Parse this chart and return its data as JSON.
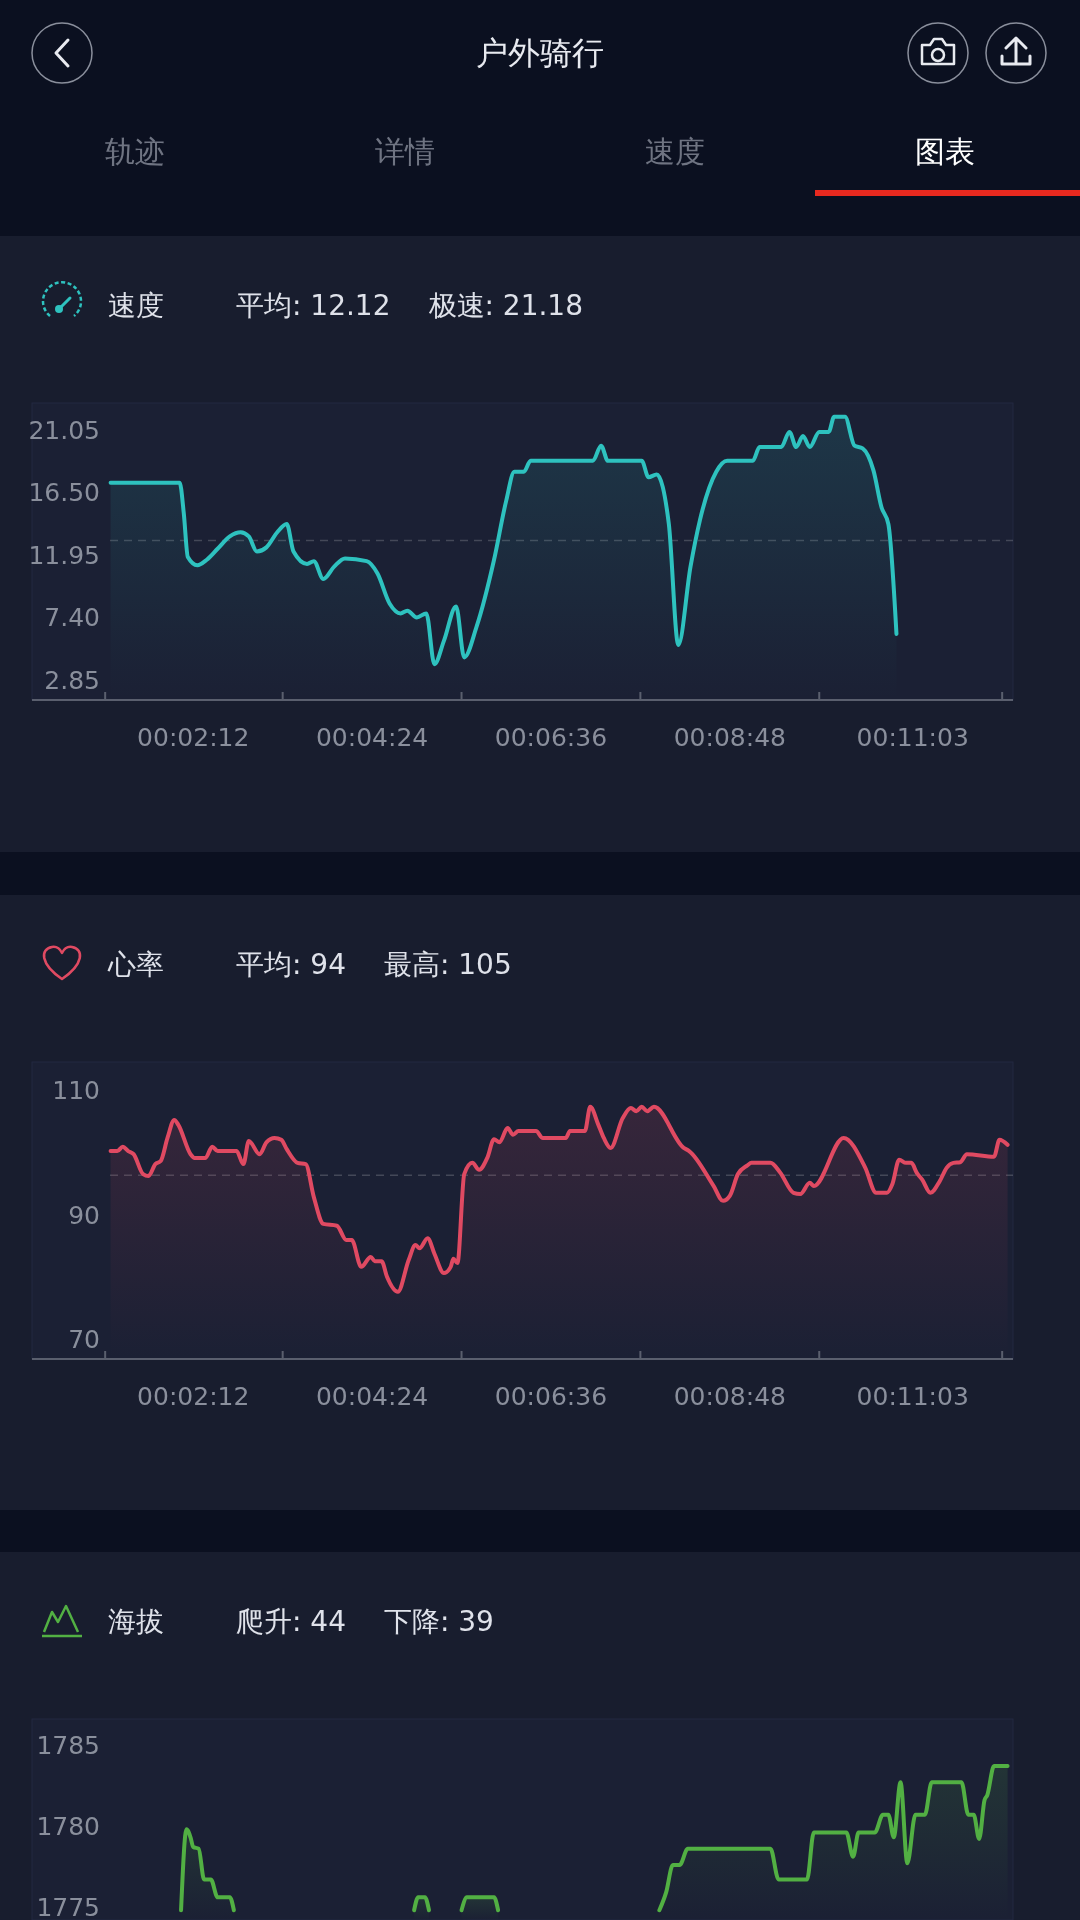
{
  "chart_data": [
    {
      "type": "other",
      "title": "户外骑行",
      "annotations": [
        "轨迹",
        "详情",
        "速度",
        "图表"
      ]
    },
    {
      "type": "area",
      "title": "速度",
      "annotations": [
        "平均: 12.12",
        "极速: 21.18"
      ],
      "x": [
        71,
        122,
        125,
        128,
        135,
        142,
        150,
        159,
        167,
        173,
        179,
        186,
        194,
        201,
        206,
        216,
        221,
        228,
        236,
        244,
        260,
        268,
        277,
        285,
        290,
        297,
        304,
        310,
        317,
        326,
        332,
        341,
        354,
        363,
        369,
        376,
        381,
        427,
        433,
        438,
        463,
        468,
        474,
        483,
        490,
        499,
        506,
        518,
        526,
        545,
        550,
        566,
        572,
        577,
        582,
        587,
        594,
        601,
        605,
        613,
        620,
        626,
        634,
        640,
        645,
        651
      ],
      "series": [
        {
          "color": "#2ec2bf",
          "values": [
            17.2,
            17.2,
            15.0,
            11.8,
            11.2,
            11.6,
            12.4,
            13.3,
            13.6,
            13.3,
            12.2,
            12.5,
            13.6,
            14.2,
            12.2,
            11.3,
            11.5,
            10.2,
            11.1,
            11.7,
            11.5,
            10.6,
            8.4,
            7.7,
            7.9,
            7.4,
            7.7,
            4.0,
            5.7,
            8.2,
            4.5,
            6.7,
            11.6,
            15.9,
            18.0,
            18.0,
            18.8,
            18.8,
            19.9,
            18.8,
            18.8,
            17.6,
            17.8,
            14.2,
            5.4,
            11.1,
            14.5,
            18.0,
            18.8,
            18.8,
            19.8,
            19.8,
            20.9,
            19.8,
            20.6,
            19.8,
            20.9,
            20.9,
            22.0,
            22.0,
            19.9,
            19.7,
            18.1,
            15.4,
            14.2,
            6.2
          ]
        }
      ],
      "xlim": [
        13,
        737
      ],
      "xticks": [
        {
          "value": 67,
          "label": null
        },
        {
          "value": 132,
          "label": "00:02:12"
        },
        {
          "value": 198,
          "label": null
        },
        {
          "value": 264,
          "label": "00:04:24"
        },
        {
          "value": 330,
          "label": null
        },
        {
          "value": 396,
          "label": "00:06:36"
        },
        {
          "value": 462,
          "label": null
        },
        {
          "value": 528,
          "label": "00:08:48"
        },
        {
          "value": 594,
          "label": null
        },
        {
          "value": 663,
          "label": "00:11:03"
        },
        {
          "value": 729,
          "label": null
        }
      ],
      "ylim": [
        1.4,
        23
      ],
      "yticks": [
        2.85,
        {
          "value": 7.4,
          "label": "7.40"
        },
        11.95,
        {
          "value": 16.5,
          "label": "16.50"
        },
        21.05
      ],
      "ref_lines": [
        {
          "axis": "y",
          "value": 13.0,
          "line_style": "dashed"
        }
      ]
    },
    {
      "type": "area",
      "title": "心率",
      "annotations": [
        "平均: 94",
        "最高: 105"
      ],
      "x": [
        71,
        76,
        80,
        84,
        88,
        95,
        99,
        104,
        108,
        113,
        118,
        121,
        130,
        133,
        141,
        146,
        150,
        164,
        169,
        173,
        181,
        186,
        192,
        197,
        201,
        209,
        215,
        221,
        228,
        238,
        245,
        249,
        256,
        263,
        266,
        271,
        275,
        283,
        291,
        296,
        299,
        305,
        310,
        317,
        322,
        324,
        327,
        332,
        338,
        343,
        349,
        354,
        358,
        364,
        368,
        372,
        385,
        390,
        407,
        410,
        421,
        425,
        431,
        435,
        440,
        449,
        455,
        459,
        463,
        467,
        472,
        494,
        498,
        516,
        523,
        528,
        534,
        541,
        544,
        558,
        565,
        575,
        580,
        587,
        590,
        612,
        628,
        636,
        644,
        648,
        653,
        658,
        662,
        666,
        670,
        676,
        683,
        688,
        693,
        698,
        703,
        723,
        727,
        733
      ],
      "series": [
        {
          "color": "#e04a62",
          "values": [
            100.3,
            100.3,
            101.0,
            100.3,
            99.8,
            96.6,
            96.3,
            98.2,
            98.7,
            102.4,
            105.3,
            104.5,
            99.8,
            99.2,
            99.2,
            101.0,
            100.3,
            100.3,
            98.2,
            101.9,
            99.8,
            101.7,
            102.4,
            102.1,
            100.6,
            98.4,
            98.2,
            92.9,
            88.6,
            88.3,
            86.0,
            86.0,
            81.7,
            83.3,
            82.6,
            82.6,
            80.1,
            77.7,
            82.8,
            85.2,
            84.7,
            86.3,
            83.8,
            80.7,
            81.7,
            83.0,
            82.3,
            96.6,
            98.4,
            97.3,
            99.2,
            102.2,
            101.7,
            104.0,
            102.9,
            103.5,
            103.5,
            102.4,
            102.4,
            103.5,
            103.5,
            107.4,
            104.5,
            102.4,
            100.8,
            105.6,
            107.2,
            106.7,
            107.4,
            106.7,
            107.4,
            100.8,
            100.3,
            94.7,
            92.3,
            93.1,
            96.6,
            98.0,
            98.4,
            98.4,
            96.9,
            93.6,
            93.4,
            95.2,
            94.7,
            102.4,
            97.6,
            93.6,
            93.6,
            95.0,
            98.9,
            98.4,
            98.4,
            96.8,
            95.7,
            93.6,
            95.5,
            97.6,
            98.4,
            98.5,
            99.8,
            99.4,
            102.1,
            101.3
          ]
        }
      ],
      "xlim": [
        13,
        737
      ],
      "xticks": [
        {
          "value": 67,
          "label": null
        },
        {
          "value": 132,
          "label": "00:02:12"
        },
        {
          "value": 198,
          "label": null
        },
        {
          "value": 264,
          "label": "00:04:24"
        },
        {
          "value": 330,
          "label": null
        },
        {
          "value": 396,
          "label": "00:06:36"
        },
        {
          "value": 462,
          "label": null
        },
        {
          "value": 528,
          "label": "00:08:48"
        },
        {
          "value": 594,
          "label": null
        },
        {
          "value": 663,
          "label": "00:11:03"
        },
        {
          "value": 729,
          "label": null
        }
      ],
      "ylim": [
        66.9,
        114.6
      ],
      "yticks": [
        70,
        90,
        110
      ],
      "ref_lines": [
        {
          "axis": "y",
          "value": 96.4,
          "line_style": "dashed"
        }
      ]
    },
    {
      "type": "area",
      "title": "海拔",
      "annotations": [
        "爬升: 44",
        "下降: 39"
      ],
      "series": [
        {
          "color": "#52b043",
          "x": [
            123,
            127,
            130,
            132,
            136,
            140,
            145,
            150,
            159,
            162
          ],
          "values": [
            1774.8,
            1779.8,
            1779.3,
            1778.7,
            1778.6,
            1776.7,
            1776.7,
            1775.6,
            1775.6,
            1774.8
          ]
        },
        {
          "color": "#52b043",
          "x": [
            295,
            298,
            303,
            306
          ],
          "values": [
            1774.8,
            1775.6,
            1775.6,
            1774.8
          ]
        },
        {
          "color": "#52b043",
          "x": [
            330,
            334,
            354,
            357
          ],
          "values": [
            1774.8,
            1775.6,
            1775.6,
            1774.8
          ]
        },
        {
          "color": "#52b043",
          "x": [
            476,
            481,
            486,
            491,
            497,
            558,
            564,
            585,
            590,
            614,
            619,
            623,
            635,
            641,
            645,
            649,
            654,
            659,
            665,
            672,
            677,
            699,
            704,
            708,
            712,
            716,
            718,
            723,
            733
          ],
          "values": [
            1774.8,
            1775.9,
            1777.6,
            1777.6,
            1778.6,
            1778.6,
            1776.7,
            1776.7,
            1779.6,
            1779.6,
            1778.1,
            1779.6,
            1779.6,
            1780.7,
            1780.7,
            1779.3,
            1782.7,
            1777.7,
            1780.7,
            1780.7,
            1782.7,
            1782.7,
            1780.7,
            1780.7,
            1779.2,
            1781.6,
            1781.9,
            1783.7,
            1783.7
          ]
        }
      ],
      "xlim": [
        13,
        737
      ],
      "ylim": [
        1774.2,
        1786.6
      ],
      "yticks": [
        1775,
        1780,
        1785
      ],
      "tick_labels": "y"
    }
  ]
}
